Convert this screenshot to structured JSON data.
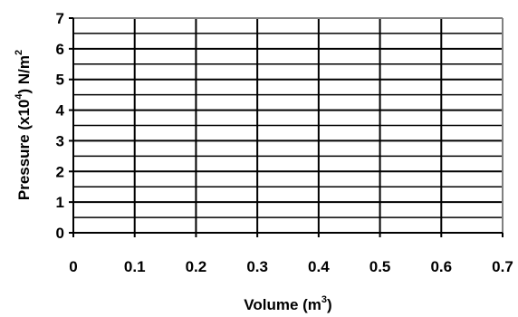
{
  "chart_data": {
    "type": "line",
    "title": "",
    "xlabel": {
      "text": "Volume (m",
      "superscript": "3",
      "suffix": ")"
    },
    "ylabel": {
      "prefix": "Pressure (x10",
      "superscript1": "4",
      "middle": ") N/m",
      "superscript2": "2",
      "suffix": ""
    },
    "xlim": [
      0,
      0.7
    ],
    "ylim": [
      0,
      7
    ],
    "x_ticks": [
      "0",
      "0.1",
      "0.2",
      "0.3",
      "0.4",
      "0.5",
      "0.6",
      "0.7"
    ],
    "y_ticks": [
      "0",
      "1",
      "2",
      "3",
      "4",
      "5",
      "6",
      "7"
    ],
    "grid": true,
    "series": []
  },
  "colors": {
    "gridline": "#000000",
    "plot_border": "#808080",
    "background": "#ffffff"
  }
}
